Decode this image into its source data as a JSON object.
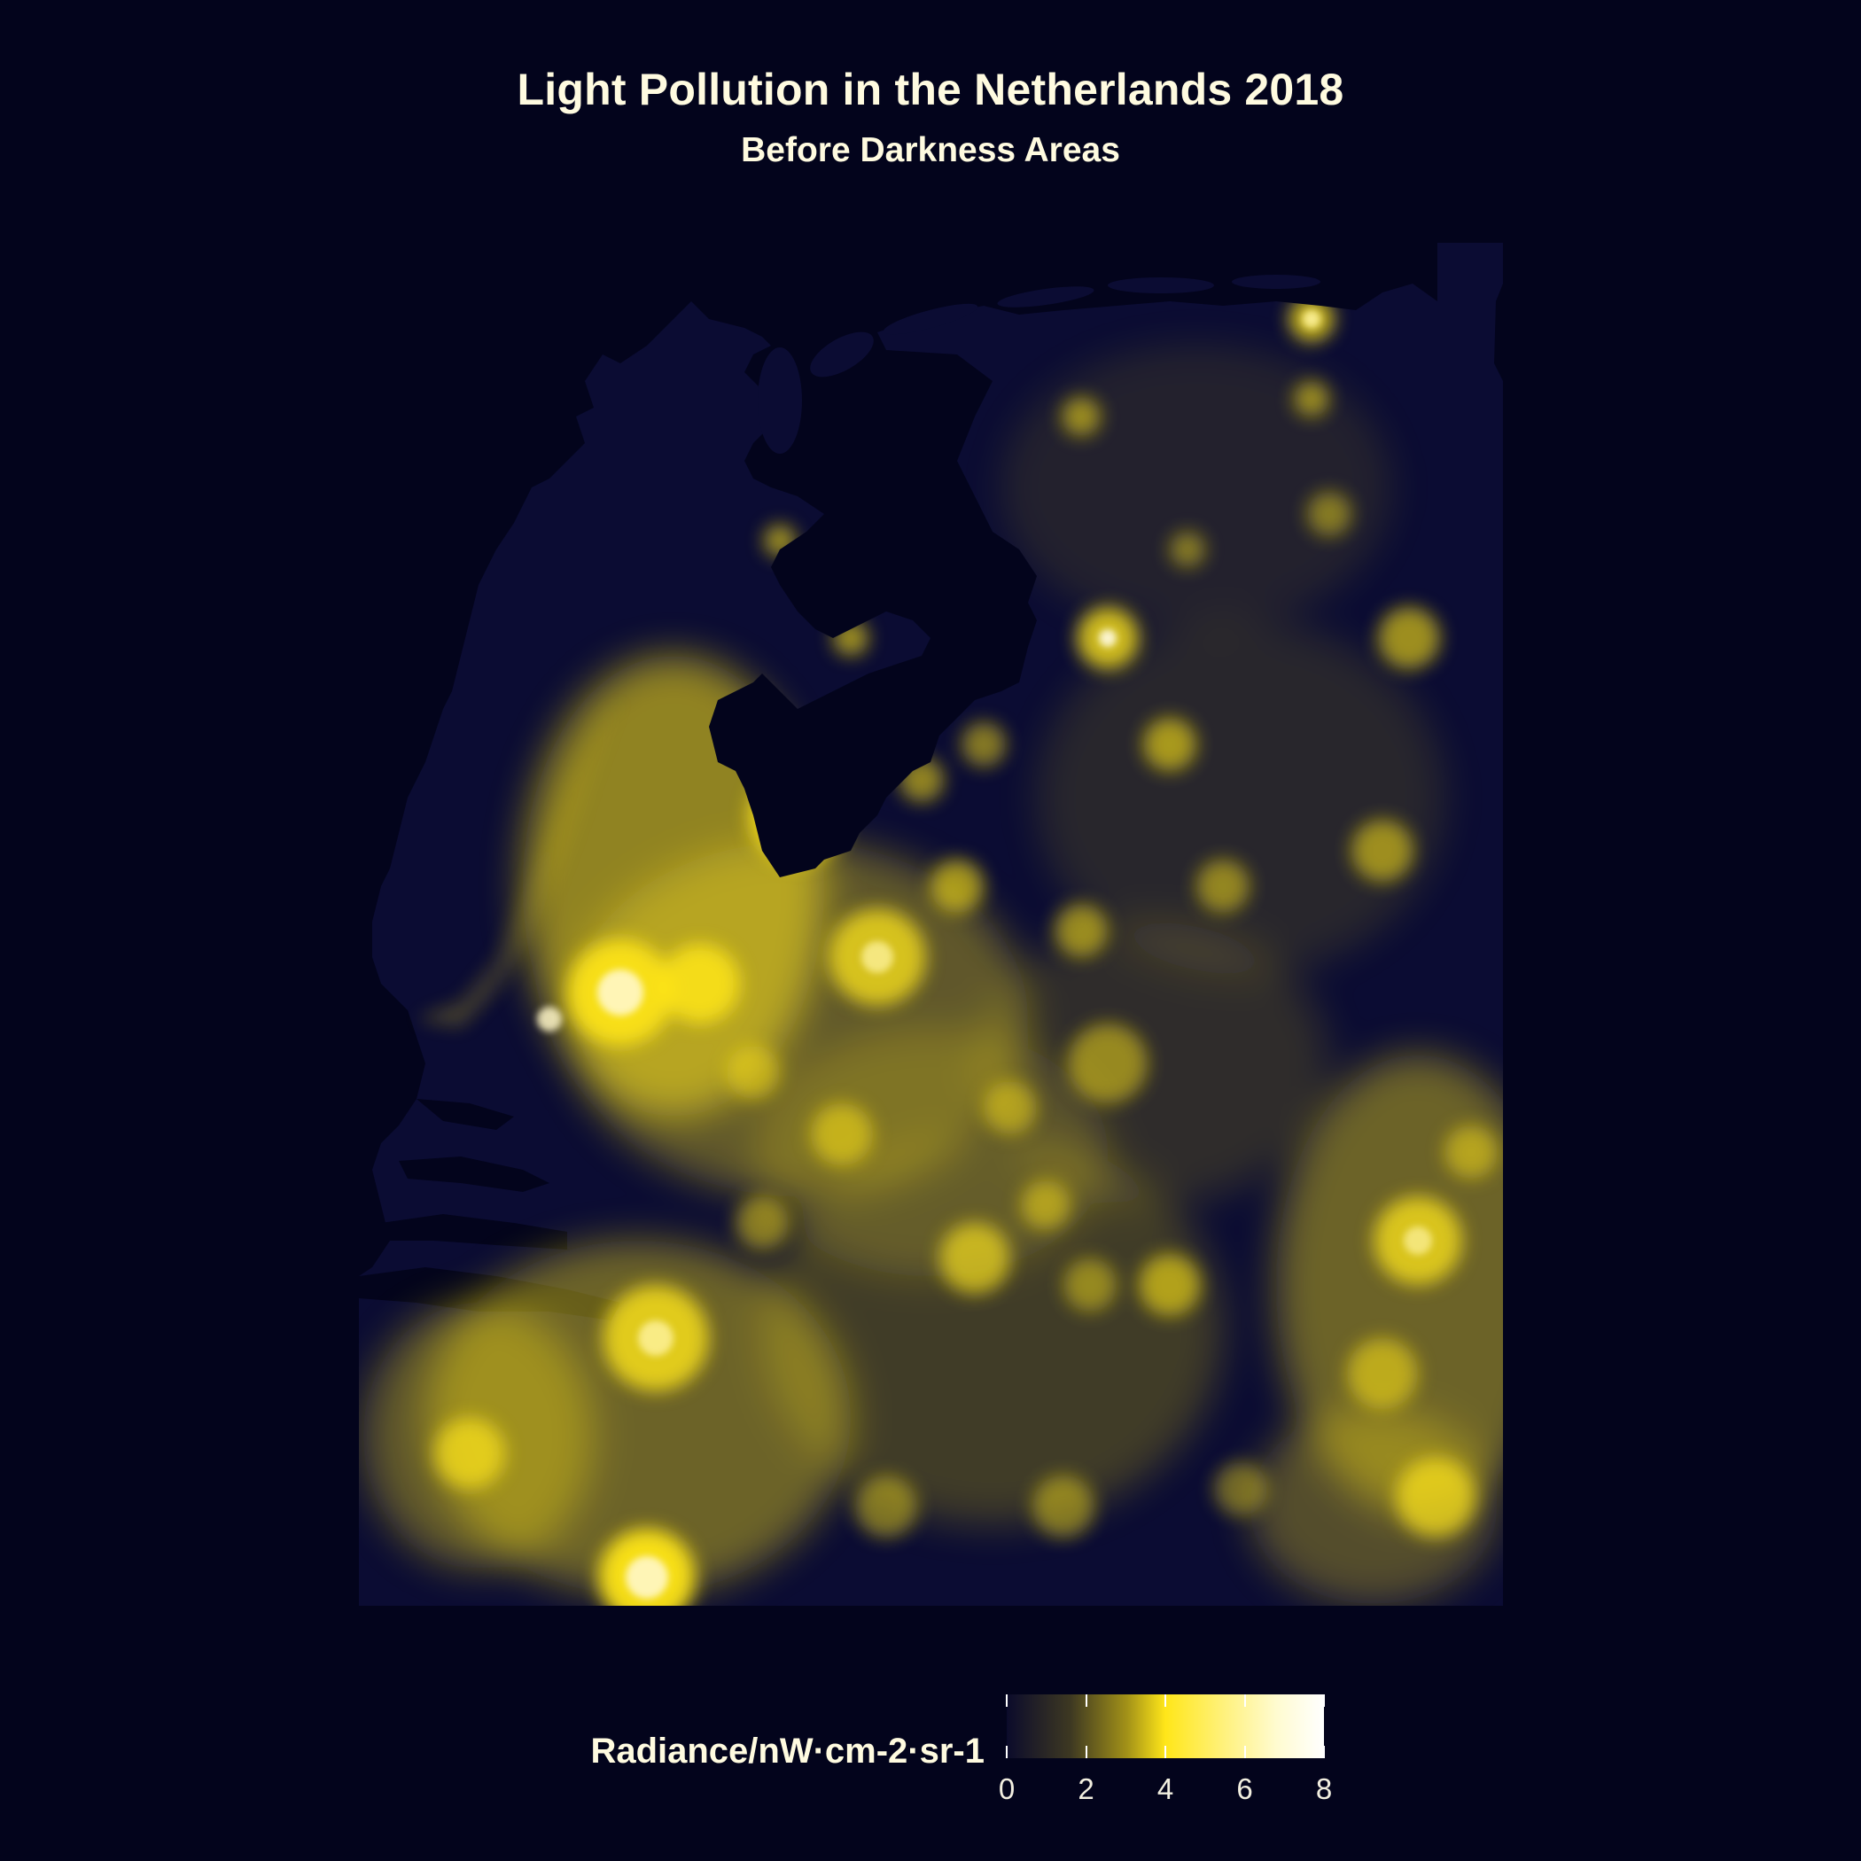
{
  "title": "Light Pollution in the Netherlands 2018",
  "subtitle": "Before Darkness Areas",
  "legend": {
    "title": "Radiance/nW·cm-2·sr-1",
    "min": 0,
    "max": 8,
    "ticks": [
      "0",
      "2",
      "4",
      "6",
      "8"
    ],
    "colors": {
      "low": "#0b0b2b",
      "mid": "#ffe619",
      "high": "#ffffff"
    }
  },
  "colors": {
    "background": "#03041c",
    "land_dark": "#0b0c33",
    "light": "#ffe619"
  }
}
